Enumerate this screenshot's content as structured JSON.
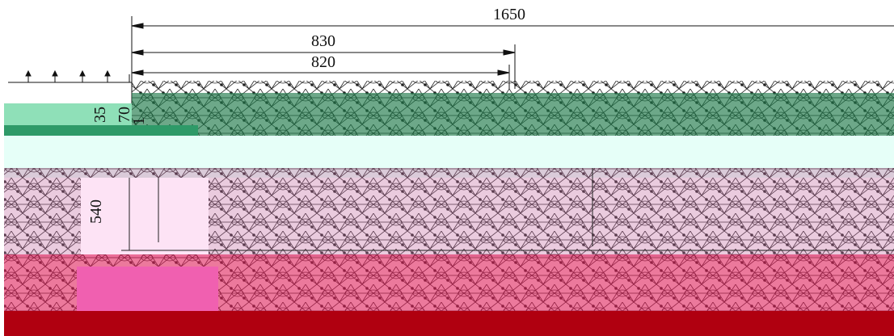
{
  "dimension_labels": [
    "1650",
    "830",
    "820",
    "35",
    "70",
    "1",
    "540"
  ]
}
